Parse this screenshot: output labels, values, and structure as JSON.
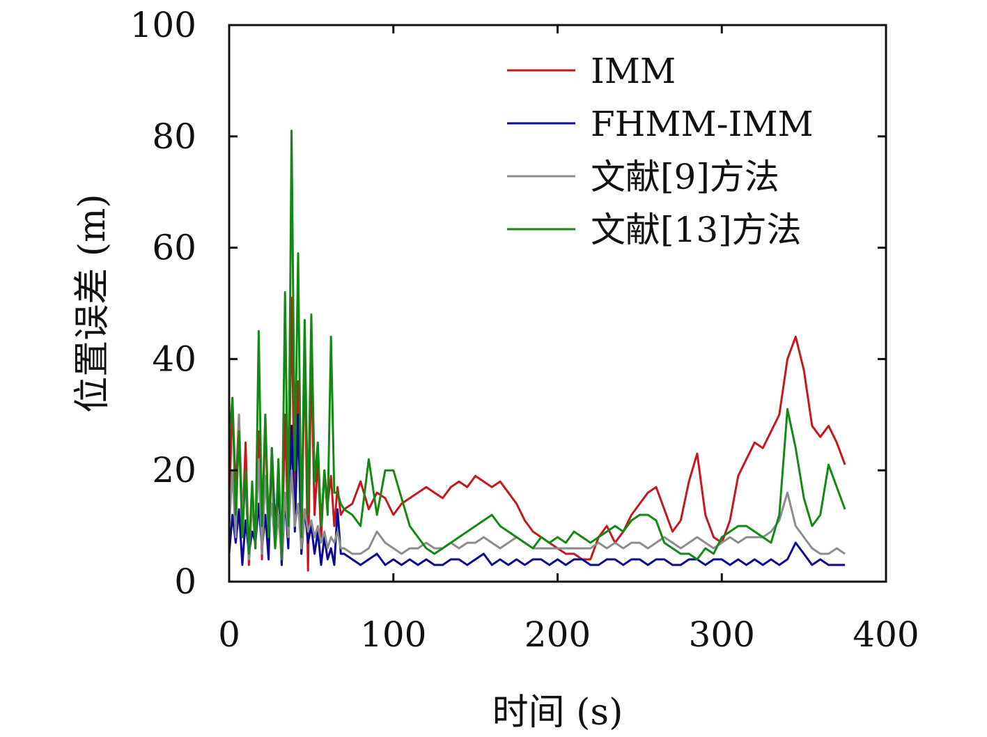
{
  "chart_data": {
    "type": "line",
    "xlabel": "时间 (s)",
    "ylabel": "位置误差 (m)",
    "xlim": [
      0,
      400
    ],
    "ylim": [
      0,
      100
    ],
    "xticks": [
      0,
      100,
      200,
      300,
      400
    ],
    "yticks": [
      0,
      20,
      40,
      60,
      80,
      100
    ],
    "grid": false,
    "legend_position": "top-right",
    "series": [
      {
        "name": "IMM",
        "color": "#c8161d",
        "x": [
          0,
          2,
          4,
          6,
          8,
          10,
          12,
          14,
          16,
          18,
          20,
          22,
          24,
          26,
          28,
          30,
          32,
          34,
          36,
          38,
          40,
          42,
          44,
          46,
          48,
          50,
          52,
          54,
          56,
          58,
          60,
          62,
          64,
          66,
          68,
          70,
          75,
          80,
          85,
          90,
          95,
          100,
          105,
          110,
          115,
          120,
          125,
          130,
          135,
          140,
          145,
          150,
          155,
          160,
          165,
          170,
          175,
          180,
          185,
          190,
          195,
          200,
          205,
          210,
          215,
          220,
          225,
          230,
          235,
          240,
          245,
          250,
          255,
          260,
          265,
          270,
          275,
          280,
          285,
          290,
          295,
          300,
          305,
          310,
          315,
          320,
          325,
          330,
          335,
          340,
          345,
          350,
          355,
          360,
          365,
          370,
          375
        ],
        "y": [
          13,
          33,
          16,
          30,
          9,
          25,
          3,
          15,
          6,
          27,
          4,
          30,
          10,
          22,
          6,
          18,
          3,
          30,
          8,
          51,
          10,
          36,
          5,
          42,
          2,
          40,
          12,
          22,
          8,
          20,
          14,
          19,
          10,
          17,
          12,
          13,
          14,
          18,
          13,
          16,
          15,
          12,
          14,
          15,
          16,
          17,
          16,
          15,
          17,
          18,
          17,
          19,
          18,
          17,
          18,
          16,
          14,
          11,
          9,
          8,
          7,
          6,
          5,
          5,
          4,
          4,
          8,
          10,
          7,
          9,
          12,
          14,
          16,
          17,
          13,
          9,
          11,
          18,
          23,
          12,
          8,
          7,
          11,
          19,
          22,
          25,
          24,
          27,
          30,
          40,
          44,
          38,
          28,
          26,
          28,
          25,
          21
        ]
      },
      {
        "name": "FHMM-IMM",
        "color": "#0a0a96",
        "x": [
          0,
          2,
          4,
          6,
          8,
          10,
          12,
          14,
          16,
          18,
          20,
          22,
          24,
          26,
          28,
          30,
          32,
          34,
          36,
          38,
          40,
          42,
          44,
          46,
          48,
          50,
          52,
          54,
          56,
          58,
          60,
          62,
          64,
          66,
          68,
          70,
          75,
          80,
          85,
          90,
          95,
          100,
          105,
          110,
          115,
          120,
          125,
          130,
          135,
          140,
          145,
          150,
          155,
          160,
          165,
          170,
          175,
          180,
          185,
          190,
          195,
          200,
          205,
          210,
          215,
          220,
          225,
          230,
          235,
          240,
          245,
          250,
          255,
          260,
          265,
          270,
          275,
          280,
          285,
          290,
          295,
          300,
          305,
          310,
          315,
          320,
          325,
          330,
          335,
          340,
          345,
          350,
          355,
          360,
          365,
          370,
          375
        ],
        "y": [
          5,
          12,
          7,
          13,
          3,
          11,
          5,
          9,
          7,
          14,
          6,
          12,
          4,
          24,
          10,
          18,
          3,
          15,
          6,
          28,
          9,
          30,
          5,
          13,
          7,
          10,
          5,
          9,
          3,
          8,
          4,
          6,
          3,
          13,
          5,
          5,
          4,
          3,
          4,
          5,
          3,
          4,
          3,
          4,
          3,
          4,
          3,
          3,
          4,
          4,
          3,
          4,
          5,
          3,
          4,
          3,
          4,
          3,
          4,
          4,
          3,
          4,
          3,
          4,
          4,
          3,
          3,
          4,
          4,
          3,
          4,
          4,
          3,
          4,
          4,
          3,
          3,
          4,
          4,
          3,
          4,
          4,
          3,
          4,
          3,
          4,
          3,
          4,
          3,
          4,
          7,
          5,
          3,
          4,
          3,
          3,
          3
        ]
      },
      {
        "name": "文献[9]方法",
        "color": "#8c8c8c",
        "x": [
          0,
          2,
          4,
          6,
          8,
          10,
          12,
          14,
          16,
          18,
          20,
          22,
          24,
          26,
          28,
          30,
          32,
          34,
          36,
          38,
          40,
          42,
          44,
          46,
          48,
          50,
          52,
          54,
          56,
          58,
          60,
          62,
          64,
          66,
          68,
          70,
          75,
          80,
          85,
          90,
          95,
          100,
          105,
          110,
          115,
          120,
          125,
          130,
          135,
          140,
          145,
          150,
          155,
          160,
          165,
          170,
          175,
          180,
          185,
          190,
          195,
          200,
          205,
          210,
          215,
          220,
          225,
          230,
          235,
          240,
          245,
          250,
          255,
          260,
          265,
          270,
          275,
          280,
          285,
          290,
          295,
          300,
          305,
          310,
          315,
          320,
          325,
          330,
          335,
          340,
          345,
          350,
          355,
          360,
          365,
          370,
          375
        ],
        "y": [
          10,
          20,
          8,
          30,
          12,
          18,
          4,
          15,
          7,
          22,
          5,
          19,
          9,
          14,
          6,
          12,
          4,
          16,
          8,
          20,
          10,
          14,
          6,
          13,
          9,
          11,
          8,
          10,
          7,
          9,
          6,
          8,
          7,
          9,
          6,
          6,
          5,
          5,
          6,
          9,
          7,
          6,
          5,
          6,
          6,
          7,
          6,
          6,
          7,
          6,
          7,
          7,
          8,
          7,
          6,
          7,
          8,
          7,
          6,
          6,
          6,
          6,
          6,
          6,
          6,
          6,
          7,
          6,
          7,
          6,
          7,
          7,
          6,
          7,
          8,
          7,
          6,
          7,
          8,
          7,
          6,
          7,
          8,
          7,
          8,
          8,
          8,
          9,
          11,
          16,
          10,
          8,
          6,
          5,
          5,
          6,
          5
        ]
      },
      {
        "name": "文献[13]方法",
        "color": "#118a11",
        "x": [
          0,
          2,
          4,
          6,
          8,
          10,
          12,
          14,
          16,
          18,
          20,
          22,
          24,
          26,
          28,
          30,
          32,
          34,
          36,
          38,
          40,
          42,
          44,
          46,
          48,
          50,
          52,
          54,
          56,
          58,
          60,
          62,
          64,
          66,
          68,
          70,
          75,
          80,
          85,
          90,
          95,
          100,
          105,
          110,
          115,
          120,
          125,
          130,
          135,
          140,
          145,
          150,
          155,
          160,
          165,
          170,
          175,
          180,
          185,
          190,
          195,
          200,
          205,
          210,
          215,
          220,
          225,
          230,
          235,
          240,
          245,
          250,
          255,
          260,
          265,
          270,
          275,
          280,
          285,
          290,
          295,
          300,
          305,
          310,
          315,
          320,
          325,
          330,
          335,
          340,
          345,
          350,
          355,
          360,
          365,
          370,
          375
        ],
        "y": [
          25,
          33,
          12,
          27,
          8,
          20,
          5,
          18,
          6,
          45,
          10,
          30,
          8,
          24,
          6,
          22,
          4,
          52,
          10,
          81,
          20,
          59,
          8,
          47,
          12,
          48,
          18,
          25,
          10,
          20,
          12,
          44,
          16,
          16,
          14,
          13,
          12,
          10,
          22,
          12,
          20,
          20,
          15,
          10,
          8,
          6,
          5,
          6,
          7,
          8,
          9,
          10,
          11,
          12,
          10,
          9,
          8,
          7,
          6,
          8,
          7,
          8,
          7,
          9,
          8,
          7,
          8,
          9,
          10,
          9,
          11,
          12,
          12,
          11,
          7,
          6,
          5,
          5,
          4,
          6,
          5,
          8,
          9,
          10,
          10,
          9,
          8,
          7,
          12,
          31,
          24,
          15,
          10,
          12,
          21,
          17,
          13
        ]
      }
    ]
  }
}
